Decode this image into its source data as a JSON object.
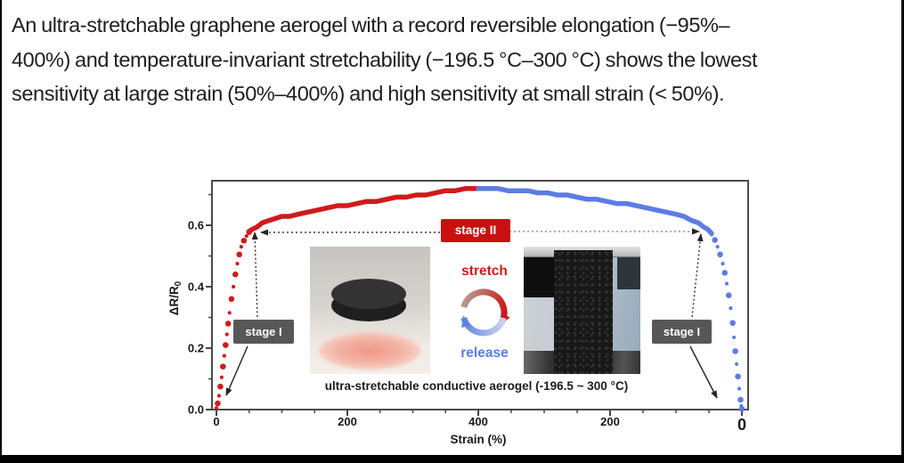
{
  "intro": {
    "lines": [
      "An ultra-stretchable graphene aerogel with a record reversible elongation (−95%–",
      "400%) and temperature-invariant stretchability (−196.5 °C–300 °C) shows the lowest",
      "sensitivity at large strain (50%–400%) and high sensitivity at small strain (< 50%)."
    ]
  },
  "figure": {
    "annotations": {
      "stage1_left": "stage I",
      "stage1_right": "stage I",
      "stage2": "stage II",
      "stretch": "stretch",
      "release": "release",
      "caption": "ultra-stretchable conductive aerogel (-196.5 ~ 300 °C)"
    },
    "colors": {
      "stretch_red": "#cf1b1b",
      "release_blue": "#5d7ce4",
      "stage1_bg": "#575757",
      "stage2_bg": "#c9100f",
      "dash_dark": "#3c3c3c",
      "dash_blue": "#8593c5"
    }
  },
  "chart_data": {
    "type": "scatter",
    "title": "",
    "xlabel": "Strain (%)",
    "ylabel": "ΔR/R₀",
    "ylabel_parts": {
      "main": "ΔR/R",
      "sub": "0"
    },
    "x_axis_note": "folded axis: strain 0→400% (stretch) then 400→0% (release)",
    "x_tick_labels": [
      "0",
      "200",
      "400",
      "200",
      "0"
    ],
    "y_tick_labels": [
      "0.0",
      "0.2",
      "0.4",
      "0.6"
    ],
    "y_tick_values": [
      0.0,
      0.2,
      0.4,
      0.6
    ],
    "ylim": [
      0,
      0.75
    ],
    "grid": false,
    "series": [
      {
        "name": "stretch",
        "color": "#cf1b1b",
        "direction": "0to400",
        "points": [
          [
            0,
            0.005
          ],
          [
            2,
            0.02
          ],
          [
            4,
            0.045
          ],
          [
            6,
            0.075
          ],
          [
            8,
            0.105
          ],
          [
            10,
            0.14
          ],
          [
            12,
            0.175
          ],
          [
            14,
            0.21
          ],
          [
            16,
            0.245
          ],
          [
            18,
            0.28
          ],
          [
            20,
            0.315
          ],
          [
            23,
            0.36
          ],
          [
            26,
            0.4
          ],
          [
            29,
            0.44
          ],
          [
            32,
            0.475
          ],
          [
            35,
            0.505
          ],
          [
            38,
            0.53
          ],
          [
            42,
            0.55
          ],
          [
            46,
            0.565
          ],
          [
            50,
            0.578
          ],
          [
            55,
            0.588
          ],
          [
            62,
            0.597
          ],
          [
            70,
            0.605
          ],
          [
            80,
            0.613
          ],
          [
            90,
            0.62
          ],
          [
            100,
            0.626
          ],
          [
            112,
            0.632
          ],
          [
            125,
            0.638
          ],
          [
            140,
            0.644
          ],
          [
            155,
            0.65
          ],
          [
            170,
            0.656
          ],
          [
            185,
            0.661
          ],
          [
            200,
            0.666
          ],
          [
            215,
            0.671
          ],
          [
            230,
            0.676
          ],
          [
            245,
            0.681
          ],
          [
            260,
            0.685
          ],
          [
            275,
            0.689
          ],
          [
            290,
            0.694
          ],
          [
            305,
            0.698
          ],
          [
            320,
            0.702
          ],
          [
            335,
            0.706
          ],
          [
            350,
            0.71
          ],
          [
            365,
            0.713
          ],
          [
            380,
            0.716
          ],
          [
            400,
            0.72
          ]
        ]
      },
      {
        "name": "release",
        "color": "#5d7ce4",
        "direction": "400to0",
        "points": [
          [
            400,
            0.72
          ],
          [
            385,
            0.719
          ],
          [
            370,
            0.717
          ],
          [
            355,
            0.714
          ],
          [
            340,
            0.712
          ],
          [
            325,
            0.709
          ],
          [
            310,
            0.706
          ],
          [
            295,
            0.703
          ],
          [
            280,
            0.7
          ],
          [
            265,
            0.696
          ],
          [
            250,
            0.692
          ],
          [
            235,
            0.688
          ],
          [
            220,
            0.684
          ],
          [
            205,
            0.679
          ],
          [
            190,
            0.674
          ],
          [
            175,
            0.669
          ],
          [
            160,
            0.663
          ],
          [
            145,
            0.657
          ],
          [
            130,
            0.65
          ],
          [
            115,
            0.642
          ],
          [
            100,
            0.634
          ],
          [
            88,
            0.626
          ],
          [
            76,
            0.617
          ],
          [
            66,
            0.607
          ],
          [
            58,
            0.596
          ],
          [
            52,
            0.585
          ],
          [
            46,
            0.57
          ],
          [
            41,
            0.552
          ],
          [
            37,
            0.53
          ],
          [
            33,
            0.505
          ],
          [
            29,
            0.475
          ],
          [
            26,
            0.445
          ],
          [
            23,
            0.41
          ],
          [
            20,
            0.372
          ],
          [
            17,
            0.33
          ],
          [
            14,
            0.282
          ],
          [
            12,
            0.235
          ],
          [
            10,
            0.19
          ],
          [
            8,
            0.148
          ],
          [
            6,
            0.108
          ],
          [
            4,
            0.068
          ],
          [
            2,
            0.032
          ],
          [
            1,
            0.012
          ],
          [
            0,
            0.002
          ]
        ]
      }
    ]
  }
}
